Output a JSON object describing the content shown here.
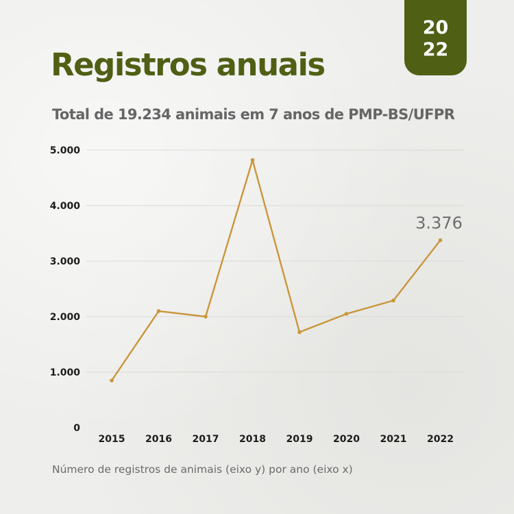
{
  "badge": {
    "line1": "20",
    "line2": "22"
  },
  "header": {
    "title": "Registros anuais",
    "subtitle": "Total de 19.234 animais em 7 anos de PMP-BS/UFPR"
  },
  "footnote": "Número de registros de animais (eixo y) por ano (eixo x)",
  "colors": {
    "brand_green": "#4f5f14",
    "line": "#c9963a",
    "grid": "#d9d9d6"
  },
  "chart_data": {
    "type": "line",
    "title": "",
    "xlabel": "",
    "ylabel": "",
    "categories": [
      "2015",
      "2016",
      "2017",
      "2018",
      "2019",
      "2020",
      "2021",
      "2022"
    ],
    "series": [
      {
        "values": [
          850,
          2100,
          2000,
          4820,
          1720,
          2050,
          2290,
          3376
        ]
      }
    ],
    "ylim": [
      0,
      5000
    ],
    "yticks": [
      {
        "value": 0,
        "label": "0"
      },
      {
        "value": 1000,
        "label": "1.000"
      },
      {
        "value": 2000,
        "label": "2.000"
      },
      {
        "value": 3000,
        "label": "3.000"
      },
      {
        "value": 4000,
        "label": "4.000"
      },
      {
        "value": 5000,
        "label": "5.000"
      }
    ],
    "grid": true,
    "annotations": [
      {
        "category": "2022",
        "text": "3.376"
      }
    ]
  }
}
